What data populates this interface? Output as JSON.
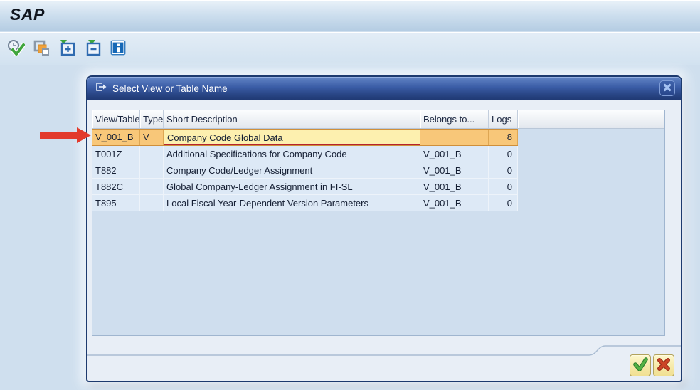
{
  "window": {
    "logo": "SAP"
  },
  "toolbar": {
    "icons": [
      "execute",
      "copy",
      "expand",
      "collapse",
      "info"
    ]
  },
  "annotation": {
    "shape": "red-arrow",
    "color": "#e23a2c",
    "points_to": "V_001_B"
  },
  "dialog": {
    "title": "Select View or Table Name",
    "close_label": "close",
    "table": {
      "columns": [
        "View/Table",
        "Type",
        "Short Description",
        "Belongs to...",
        "Logs"
      ],
      "rows": [
        {
          "view_table": "V_001_B",
          "type": "V",
          "description": "Company Code Global Data",
          "belongs_to": "",
          "logs": "8",
          "selected": true
        },
        {
          "view_table": "T001Z",
          "type": "",
          "description": "Additional Specifications for Company Code",
          "belongs_to": "V_001_B",
          "logs": "0",
          "selected": false
        },
        {
          "view_table": "T882",
          "type": "",
          "description": "Company Code/Ledger Assignment",
          "belongs_to": "V_001_B",
          "logs": "0",
          "selected": false
        },
        {
          "view_table": "T882C",
          "type": "",
          "description": "Global Company-Ledger Assignment in FI-SL",
          "belongs_to": "V_001_B",
          "logs": "0",
          "selected": false
        },
        {
          "view_table": "T895",
          "type": "",
          "description": "Local Fiscal Year-Dependent Version Parameters",
          "belongs_to": "V_001_B",
          "logs": "0",
          "selected": false
        }
      ]
    },
    "buttons": {
      "confirm": "confirm",
      "cancel": "cancel"
    }
  },
  "colors": {
    "selected_row": "#f8c779",
    "focused_cell": "#fdf0af",
    "focus_border": "#b5232f",
    "titlebar": "#2a4787",
    "confirm_green": "#3fa53c",
    "cancel_red": "#c63a22",
    "arrow_red": "#e23a2c"
  }
}
